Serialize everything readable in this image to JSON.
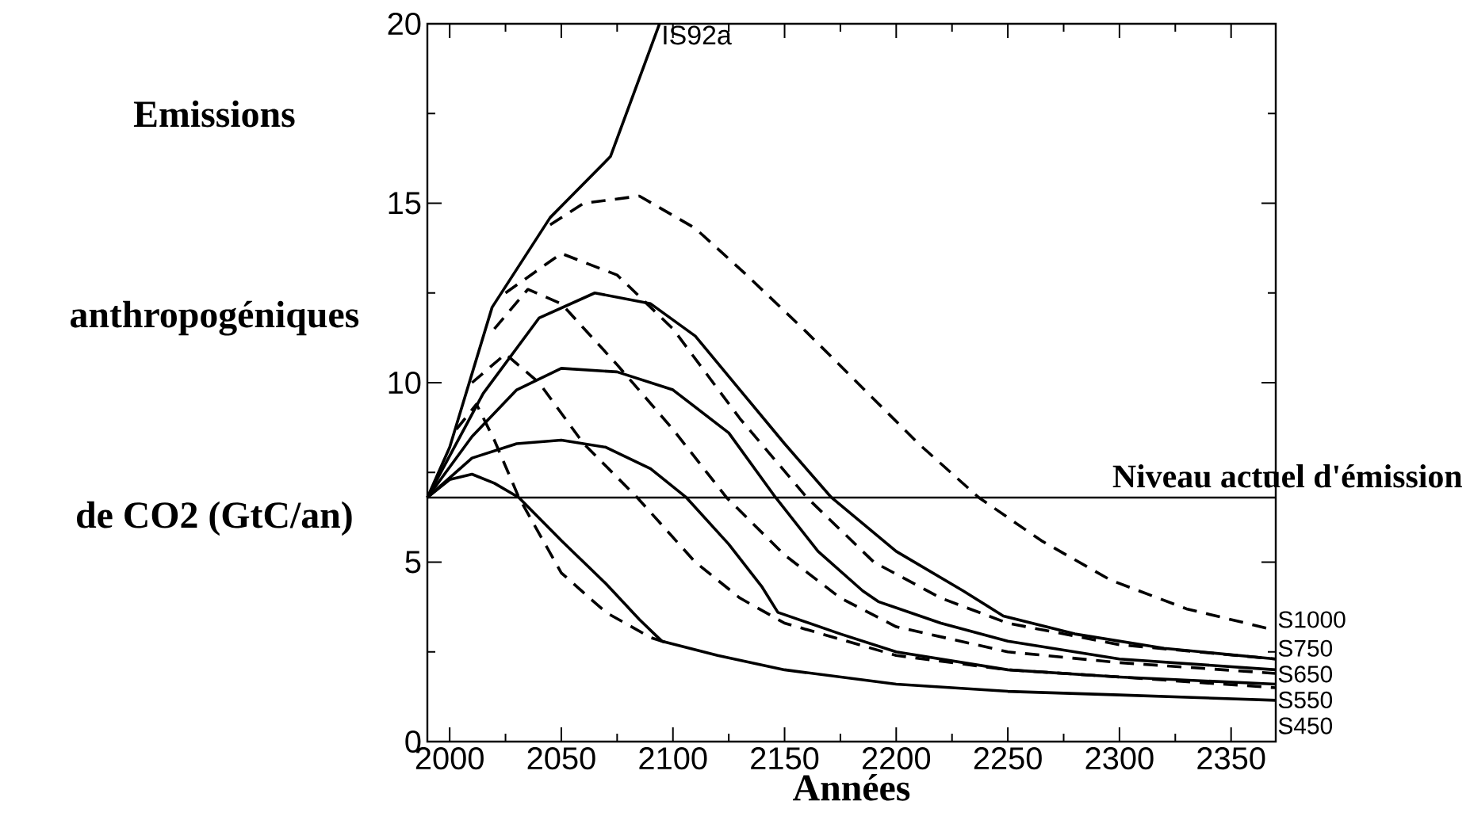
{
  "chart_data": {
    "type": "line",
    "xlabel": "Années",
    "ylabel": "Emissions anthropogéniques de CO2  (GtC/an)",
    "legend": "right",
    "xlim": [
      1990,
      2370
    ],
    "ylim": [
      0,
      20
    ],
    "xticks": [
      2000,
      2050,
      2100,
      2150,
      2200,
      2250,
      2300,
      2350
    ],
    "yticks": [
      0,
      5,
      10,
      15,
      20
    ],
    "ref_lines": [
      {
        "axis": "y",
        "value": 6.8,
        "label": "Niveau actuel  d'émission"
      }
    ],
    "series": [
      {
        "name": "IS92a",
        "color": "#000000",
        "line_style": "solid",
        "x": [
          1990,
          2000,
          2019,
          2045,
          2072,
          2094
        ],
        "values": [
          6.8,
          8.2,
          12.1,
          14.6,
          16.3,
          20
        ]
      },
      {
        "name": "S1000",
        "color": "#000000",
        "line_style": "dashed",
        "x": [
          2045,
          2060,
          2085,
          2110,
          2133,
          2160,
          2181,
          2210,
          2237,
          2265,
          2296,
          2330,
          2370
        ],
        "values": [
          14.4,
          15.0,
          15.2,
          14.3,
          13.0,
          11.4,
          10.1,
          8.3,
          6.8,
          5.6,
          4.5,
          3.7,
          3.1
        ]
      },
      {
        "color": "#000000",
        "line_style": "dashed",
        "x": [
          2025,
          2050,
          2075,
          2100,
          2130,
          2160,
          2190,
          2220,
          2250,
          2300,
          2370
        ],
        "values": [
          12.5,
          13.6,
          13.0,
          11.5,
          9.0,
          6.8,
          5.0,
          4.0,
          3.3,
          2.7,
          2.3
        ]
      },
      {
        "color": "#000000",
        "line_style": "dashed",
        "x": [
          2020,
          2035,
          2050,
          2075,
          2100,
          2124,
          2150,
          2175,
          2200,
          2250,
          2300,
          2370
        ],
        "values": [
          11.5,
          12.6,
          12.2,
          10.5,
          8.7,
          6.8,
          5.2,
          4.0,
          3.2,
          2.5,
          2.2,
          1.9
        ]
      },
      {
        "color": "#000000",
        "line_style": "dashed",
        "x": [
          2010,
          2025,
          2040,
          2060,
          2084,
          2110,
          2130,
          2150,
          2200,
          2250,
          2300,
          2370
        ],
        "values": [
          10.0,
          10.8,
          10.0,
          8.3,
          6.8,
          5.0,
          4.0,
          3.3,
          2.4,
          2.0,
          1.8,
          1.5
        ]
      },
      {
        "color": "#000000",
        "line_style": "dashed",
        "x": [
          2003,
          2012,
          2020,
          2031,
          2050,
          2070,
          2090,
          2100
        ],
        "values": [
          8.7,
          9.4,
          8.4,
          6.8,
          4.7,
          3.6,
          2.9,
          2.7
        ]
      },
      {
        "name": "S750",
        "color": "#000000",
        "line_style": "solid",
        "x": [
          1990,
          2015,
          2040,
          2065,
          2090,
          2110,
          2130,
          2150,
          2171,
          2200,
          2230,
          2248,
          2280,
          2320,
          2370
        ],
        "values": [
          6.8,
          9.7,
          11.8,
          12.5,
          12.2,
          11.3,
          9.8,
          8.3,
          6.8,
          5.3,
          4.2,
          3.5,
          3.0,
          2.6,
          2.3
        ]
      },
      {
        "name": "S650",
        "color": "#000000",
        "line_style": "solid",
        "x": [
          1990,
          2010,
          2030,
          2050,
          2075,
          2100,
          2125,
          2146,
          2165,
          2185,
          2192,
          2220,
          2250,
          2300,
          2370
        ],
        "values": [
          6.8,
          8.5,
          9.8,
          10.4,
          10.3,
          9.8,
          8.6,
          6.8,
          5.3,
          4.2,
          3.9,
          3.3,
          2.8,
          2.3,
          2.0
        ]
      },
      {
        "name": "S550",
        "color": "#000000",
        "line_style": "solid",
        "x": [
          1990,
          2010,
          2030,
          2050,
          2070,
          2090,
          2106,
          2125,
          2140,
          2147,
          2175,
          2200,
          2250,
          2300,
          2370
        ],
        "values": [
          6.8,
          7.9,
          8.3,
          8.4,
          8.2,
          7.6,
          6.8,
          5.5,
          4.3,
          3.6,
          3.0,
          2.5,
          2.0,
          1.8,
          1.6
        ]
      },
      {
        "name": "S450",
        "color": "#000000",
        "line_style": "solid",
        "x": [
          1990,
          2000,
          2010,
          2020,
          2031,
          2050,
          2070,
          2085,
          2095,
          2120,
          2150,
          2200,
          2250,
          2300,
          2370
        ],
        "values": [
          6.8,
          7.3,
          7.45,
          7.2,
          6.8,
          5.6,
          4.4,
          3.4,
          2.8,
          2.4,
          2.0,
          1.6,
          1.4,
          1.3,
          1.15
        ]
      }
    ]
  }
}
